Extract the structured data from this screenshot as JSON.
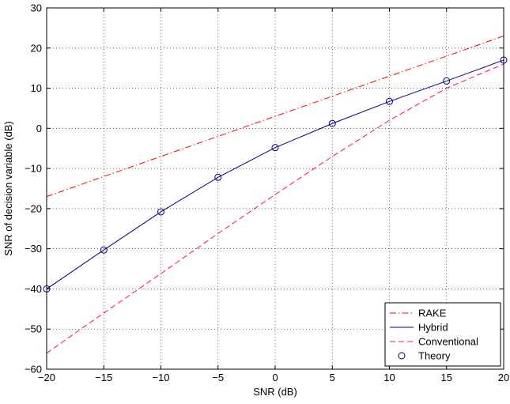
{
  "chart_data": {
    "type": "line",
    "xlabel": "SNR (dB)",
    "ylabel": "SNR of decision variable (dB)",
    "xlim": [
      -20,
      20
    ],
    "ylim": [
      -60,
      30
    ],
    "xticks": [
      -20,
      -15,
      -10,
      -5,
      0,
      5,
      10,
      15,
      20
    ],
    "yticks": [
      -60,
      -50,
      -40,
      -30,
      -20,
      -10,
      0,
      10,
      20,
      30
    ],
    "xtick_labels": [
      "−20",
      "−15",
      "−10",
      "−5",
      "0",
      "5",
      "10",
      "15",
      "20"
    ],
    "ytick_labels": [
      "−60",
      "−50",
      "−40",
      "−30",
      "−20",
      "−10",
      "0",
      "10",
      "20",
      "30"
    ],
    "grid": true,
    "legend_position": "bottom-right",
    "series": [
      {
        "name": "RAKE",
        "style": "dash-dot",
        "color": "#ff0000",
        "x": [
          -20,
          20
        ],
        "y": [
          -17,
          23
        ]
      },
      {
        "name": "Hybrid",
        "style": "solid",
        "color": "#00007f",
        "x": [
          -20,
          -15,
          -10,
          -5,
          0,
          5,
          10,
          15,
          20
        ],
        "y": [
          -40,
          -30.3,
          -20.8,
          -12.2,
          -4.8,
          1.2,
          6.7,
          11.8,
          17
        ]
      },
      {
        "name": "Conventional",
        "style": "dashed",
        "color": "#ff0080",
        "x": [
          -20,
          -15,
          -10,
          -5,
          0,
          5,
          10,
          15,
          20
        ],
        "y": [
          -56,
          -46,
          -36.2,
          -26.2,
          -16.5,
          -7,
          2,
          10,
          16
        ]
      },
      {
        "name": "Theory",
        "style": "marker-circle",
        "color": "#00007f",
        "x": [
          -20,
          -15,
          -10,
          -5,
          0,
          5,
          10,
          15,
          20
        ],
        "y": [
          -40,
          -30.3,
          -20.8,
          -12.2,
          -4.8,
          1.2,
          6.7,
          11.8,
          17
        ]
      }
    ]
  }
}
